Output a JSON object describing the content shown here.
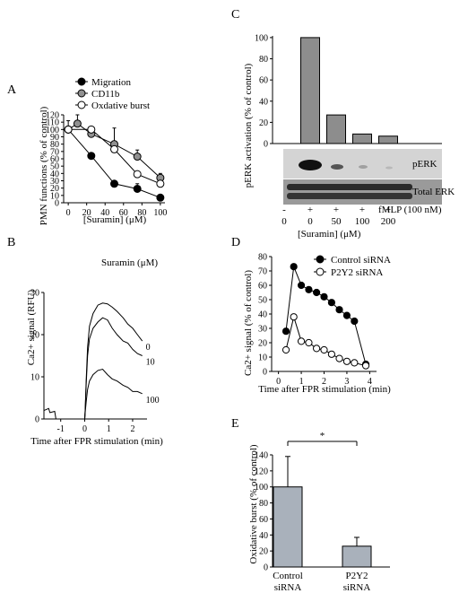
{
  "panel_labels": {
    "a": "A",
    "b": "B",
    "c": "C",
    "d": "D",
    "e": "E"
  },
  "colors": {
    "filled": "#000000",
    "gray_marker": "#909090",
    "open": "#ffffff",
    "bar": "#a9b1bb"
  },
  "chart_data": [
    {
      "id": "A",
      "type": "line",
      "xlabel": "[Suramin] (μM)",
      "ylabel": "PMN functions (% of control)",
      "xlim": [
        -5,
        105
      ],
      "ylim": [
        0,
        120
      ],
      "xticks": [
        0,
        20,
        40,
        60,
        80,
        100
      ],
      "yticks": [
        0,
        10,
        20,
        30,
        40,
        50,
        60,
        70,
        80,
        90,
        100,
        110,
        120
      ],
      "series": [
        {
          "name": "Migration",
          "marker": "filled",
          "x": [
            0,
            25,
            50,
            75,
            100
          ],
          "y": [
            100,
            64,
            26,
            19,
            7
          ],
          "err": [
            0,
            3,
            0,
            7,
            0
          ]
        },
        {
          "name": "CD11b",
          "marker": "gray",
          "x": [
            0,
            10,
            25,
            50,
            75,
            100
          ],
          "y": [
            100,
            108,
            94,
            80,
            63,
            34
          ],
          "err": [
            0,
            12,
            0,
            22,
            9,
            6
          ]
        },
        {
          "name": "Oxdative burst",
          "marker": "open",
          "x": [
            0,
            25,
            50,
            75,
            100
          ],
          "y": [
            100,
            100,
            73,
            39,
            26
          ],
          "err": [
            12,
            0,
            0,
            0,
            0
          ]
        }
      ]
    },
    {
      "id": "B",
      "type": "line",
      "annotation": "Suramin (μM)",
      "xlabel": "Time after FPR stimulation (min)",
      "ylabel": "Ca2+ signal (RFU)",
      "xlim": [
        -1.7,
        2.6
      ],
      "ylim": [
        0,
        30
      ],
      "xticks": [
        -1,
        0,
        1,
        2
      ],
      "yticks": [
        0,
        10,
        20,
        30
      ],
      "series": [
        {
          "name": "0",
          "x": [
            -1.7,
            -1.5,
            -1.45,
            -1.25,
            -1.2,
            0,
            0.02,
            0.06,
            0.12,
            0.2,
            0.35,
            0.55,
            0.75,
            0.95,
            1.15,
            1.35,
            1.6,
            1.8,
            2.0,
            2.2,
            2.4
          ],
          "y": [
            2,
            2.5,
            1.5,
            1.8,
            0,
            0,
            2,
            9,
            17,
            22,
            25,
            27,
            27.5,
            27.3,
            26.5,
            25.5,
            24,
            22.5,
            21.5,
            20,
            18.5
          ]
        },
        {
          "name": "10",
          "x": [
            -0.1,
            0,
            0.02,
            0.06,
            0.12,
            0.2,
            0.35,
            0.55,
            0.75,
            0.95,
            1.15,
            1.35,
            1.6,
            1.8,
            2.0,
            2.2,
            2.4
          ],
          "y": [
            0,
            0,
            2,
            8,
            15,
            19,
            21.5,
            23,
            24,
            23.5,
            21.5,
            20,
            18.5,
            18,
            16.5,
            15.5,
            15
          ]
        },
        {
          "name": "100",
          "x": [
            -0.1,
            0,
            0.02,
            0.06,
            0.12,
            0.2,
            0.35,
            0.55,
            0.75,
            0.95,
            1.15,
            1.35,
            1.6,
            1.8,
            2.0,
            2.2,
            2.4
          ],
          "y": [
            0,
            0,
            1.5,
            4,
            7,
            9,
            10.5,
            11.5,
            11.8,
            10.5,
            9.5,
            9,
            8,
            7.5,
            6.5,
            6.5,
            6
          ]
        }
      ]
    },
    {
      "id": "C",
      "type": "bar",
      "ylabel": "pERK activation (% of control)",
      "ylim": [
        0,
        105
      ],
      "yticks": [
        0,
        20,
        40,
        60,
        80,
        100
      ],
      "categories": [
        "-",
        "0",
        "50",
        "100",
        "200"
      ],
      "values": [
        0,
        100,
        27,
        9,
        7
      ],
      "row_fmlp": [
        "-",
        "+",
        "+",
        "+",
        "+"
      ],
      "row_fmlp_label": "fMLP (100 nM)",
      "row_suramin": [
        "0",
        "0",
        "50",
        "100",
        "200"
      ],
      "row_suramin_label": "[Suramin] (μM)",
      "blot_labels": [
        "pERK",
        "Total ERK"
      ]
    },
    {
      "id": "D",
      "type": "line",
      "xlabel": "Time after FPR stimulation (min)",
      "ylabel": "Ca2+ signal (% of control)",
      "xlim": [
        -0.3,
        4.3
      ],
      "ylim": [
        0,
        80
      ],
      "xticks": [
        0,
        1,
        2,
        3,
        4
      ],
      "yticks": [
        0,
        10,
        20,
        30,
        40,
        50,
        60,
        70,
        80
      ],
      "series": [
        {
          "name": "Control siRNA",
          "marker": "filled",
          "x": [
            0.33,
            0.67,
            1.0,
            1.33,
            1.67,
            2.0,
            2.33,
            2.67,
            3.0,
            3.33,
            3.83
          ],
          "y": [
            28,
            73,
            60,
            57,
            55,
            52,
            48,
            43,
            39,
            35,
            5
          ]
        },
        {
          "name": "P2Y2 siRNA",
          "marker": "open",
          "x": [
            0.33,
            0.67,
            1.0,
            1.33,
            1.67,
            2.0,
            2.33,
            2.67,
            3.0,
            3.33,
            3.83
          ],
          "y": [
            15,
            38,
            21,
            20,
            16,
            15,
            12,
            9,
            7,
            6,
            4
          ]
        }
      ]
    },
    {
      "id": "E",
      "type": "bar",
      "ylabel": "Oxidative burst (% of control)",
      "ylim": [
        0,
        140
      ],
      "yticks": [
        0,
        20,
        40,
        60,
        80,
        100,
        120,
        140
      ],
      "categories": [
        [
          "Control",
          "siRNA"
        ],
        [
          "P2Y2",
          "siRNA"
        ]
      ],
      "values": [
        100,
        26
      ],
      "errors": [
        38,
        11
      ],
      "significance": "*"
    }
  ]
}
